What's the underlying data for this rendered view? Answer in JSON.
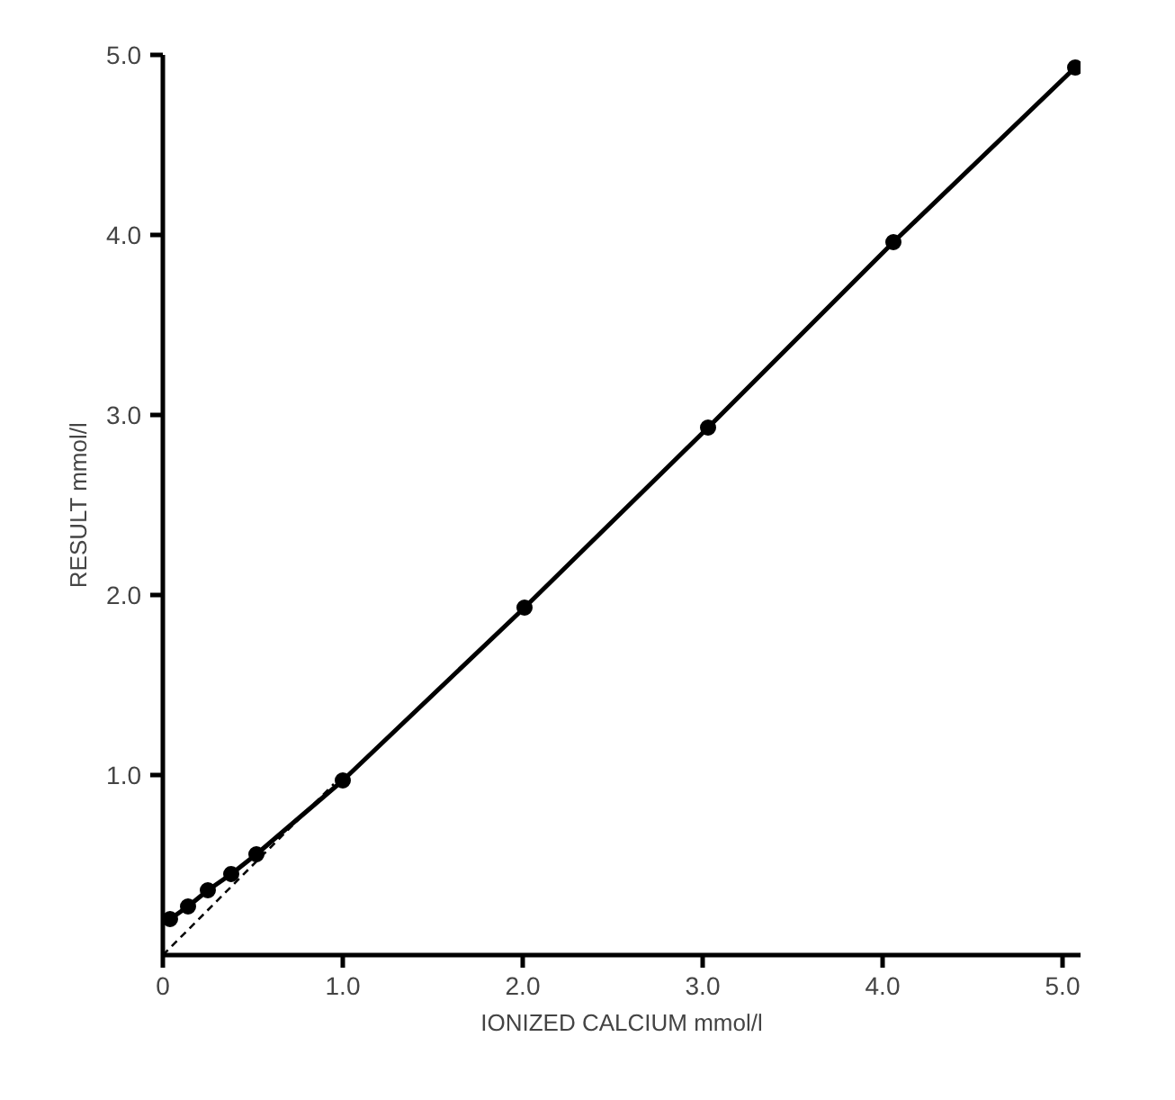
{
  "chart_data": {
    "type": "line",
    "xlabel": "IONIZED CALCIUM mmol/l",
    "ylabel": "RESULT mmol/l",
    "xlim": [
      0,
      5.1
    ],
    "ylim": [
      0,
      5.0
    ],
    "xticks": [
      0,
      {
        "value": 1,
        "label": "1.0"
      },
      {
        "value": 2,
        "label": "2.0"
      },
      {
        "value": 3,
        "label": "3.0"
      },
      {
        "value": 4,
        "label": "4.0"
      },
      {
        "value": 5,
        "label": "5.0"
      }
    ],
    "yticks": [
      {
        "value": 1,
        "label": "1.0"
      },
      {
        "value": 2,
        "label": "2.0"
      },
      {
        "value": 3,
        "label": "3.0"
      },
      {
        "value": 4,
        "label": "4.0"
      },
      {
        "value": 5,
        "label": "5.0"
      }
    ],
    "grid": false,
    "marker": "circle",
    "series": [
      {
        "color": "#000000",
        "line_style": "solid",
        "x": [
          0.04,
          0.14,
          0.25,
          0.38,
          0.52,
          1.0,
          2.01,
          3.03,
          4.06,
          5.07
        ],
        "values": [
          0.2,
          0.27,
          0.36,
          0.45,
          0.56,
          0.97,
          1.93,
          2.93,
          3.96,
          4.93
        ]
      },
      {
        "color": "#000000",
        "marker": "none",
        "line_style": "dashed",
        "x": [
          0,
          0.95
        ],
        "values": [
          0,
          0.95
        ]
      }
    ]
  }
}
